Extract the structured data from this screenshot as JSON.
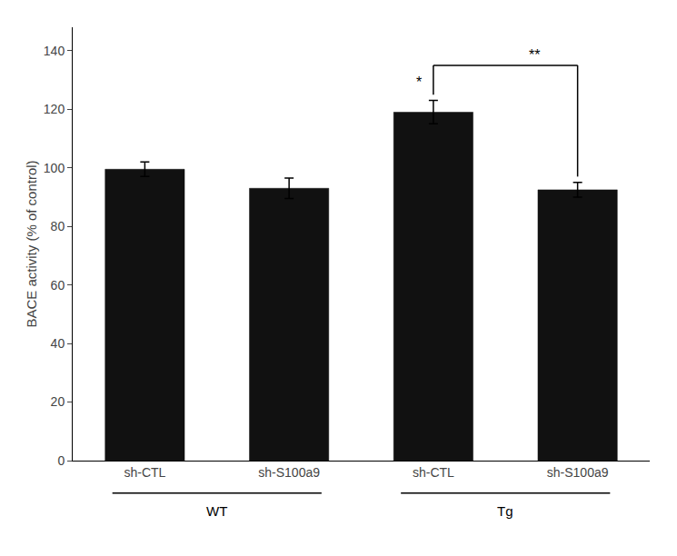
{
  "chart_data": {
    "type": "bar",
    "categories": [
      "sh-CTL",
      "sh-S100a9",
      "sh-CTL",
      "sh-S100a9"
    ],
    "values": [
      99.5,
      93.0,
      119.0,
      92.5
    ],
    "errors": [
      2.5,
      3.5,
      4.0,
      2.5
    ],
    "color": "#111111",
    "ylabel": "BACE activity (% of control)",
    "ylim": [
      0,
      148
    ],
    "yticks": [
      0,
      20,
      40,
      60,
      80,
      100,
      120,
      140
    ],
    "grid": false,
    "groups": [
      {
        "label": "WT",
        "categories": [
          0,
          1
        ]
      },
      {
        "label": "Tg",
        "categories": [
          2,
          3
        ]
      }
    ],
    "annotations": [
      {
        "text": "*",
        "x": 2,
        "y": 126
      },
      {
        "text": "**",
        "bracket": [
          2,
          3
        ],
        "y": 135,
        "y_left": 125,
        "y_right": 97
      }
    ]
  }
}
